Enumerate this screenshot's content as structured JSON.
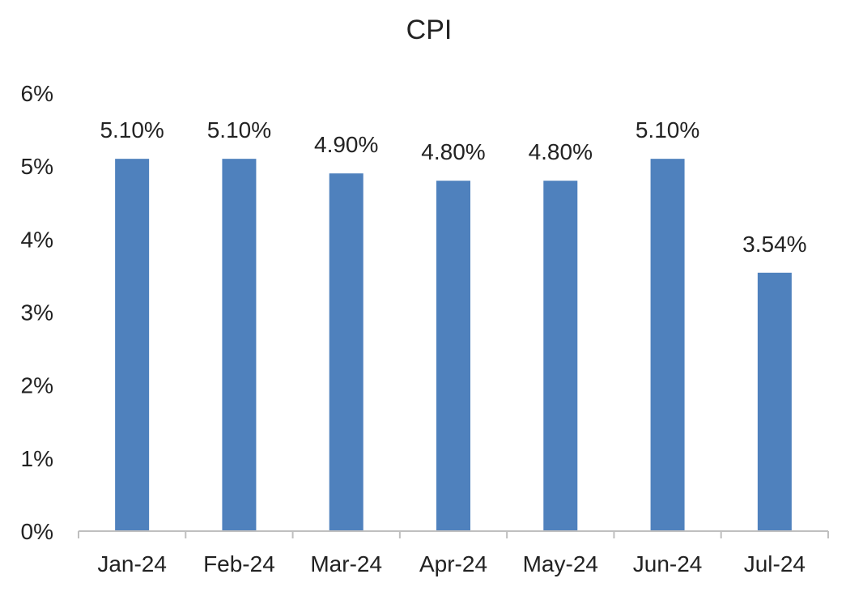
{
  "chart_data": {
    "type": "bar",
    "title": "CPI",
    "xlabel": "",
    "ylabel": "",
    "categories": [
      "Jan-24",
      "Feb-24",
      "Mar-24",
      "Apr-24",
      "May-24",
      "Jun-24",
      "Jul-24"
    ],
    "values": [
      5.1,
      5.1,
      4.9,
      4.8,
      4.8,
      5.1,
      3.54
    ],
    "data_labels": [
      "5.10%",
      "5.10%",
      "4.90%",
      "4.80%",
      "4.80%",
      "5.10%",
      "3.54%"
    ],
    "yticks": [
      0,
      1,
      2,
      3,
      4,
      5,
      6
    ],
    "ytick_labels": [
      "0%",
      "1%",
      "2%",
      "3%",
      "4%",
      "5%",
      "6%"
    ],
    "ylim": [
      0,
      6
    ],
    "grid": false,
    "legend": "none",
    "colors": {
      "bar": "#4f81bd",
      "axis": "#bfbfbf",
      "text": "#222222"
    }
  }
}
